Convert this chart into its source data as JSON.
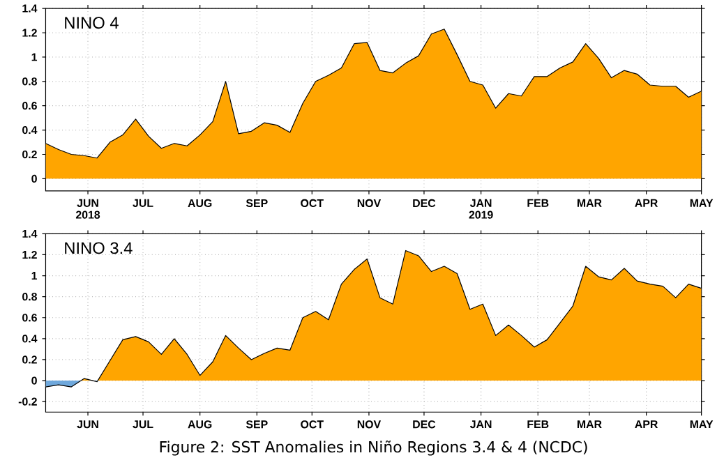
{
  "chart_data": [
    {
      "type": "area",
      "title": "NINO  4",
      "x": [
        "2018-05-09",
        "2018-05-16",
        "2018-05-23",
        "2018-05-30",
        "2018-06-06",
        "2018-06-13",
        "2018-06-20",
        "2018-06-27",
        "2018-07-04",
        "2018-07-11",
        "2018-07-18",
        "2018-07-25",
        "2018-08-01",
        "2018-08-08",
        "2018-08-15",
        "2018-08-22",
        "2018-08-29",
        "2018-09-05",
        "2018-09-12",
        "2018-09-19",
        "2018-09-26",
        "2018-10-03",
        "2018-10-10",
        "2018-10-17",
        "2018-10-24",
        "2018-10-31",
        "2018-11-07",
        "2018-11-14",
        "2018-11-21",
        "2018-11-28",
        "2018-12-05",
        "2018-12-12",
        "2018-12-19",
        "2018-12-26",
        "2019-01-02",
        "2019-01-09",
        "2019-01-16",
        "2019-01-23",
        "2019-01-30",
        "2019-02-06",
        "2019-02-13",
        "2019-02-20",
        "2019-02-27",
        "2019-03-06",
        "2019-03-13",
        "2019-03-20",
        "2019-03-27",
        "2019-04-03",
        "2019-04-10",
        "2019-04-17",
        "2019-04-24",
        "2019-05-01"
      ],
      "series": [
        {
          "color": "#ffa500",
          "values": [
            0.29,
            0.24,
            0.2,
            0.19,
            0.17,
            0.3,
            0.36,
            0.49,
            0.35,
            0.25,
            0.29,
            0.27,
            0.36,
            0.47,
            0.8,
            0.37,
            0.39,
            0.46,
            0.44,
            0.38,
            0.62,
            0.8,
            0.85,
            0.91,
            1.11,
            1.12,
            0.89,
            0.87,
            0.95,
            1.01,
            1.19,
            1.23,
            1.02,
            0.8,
            0.77,
            0.58,
            0.7,
            0.68,
            0.84,
            0.84,
            0.91,
            0.96,
            1.11,
            0.99,
            0.83,
            0.89,
            0.86,
            0.77,
            0.76,
            0.76,
            0.67,
            0.72
          ]
        }
      ],
      "xlim": [
        "2018-05-09",
        "2019-05-01"
      ],
      "xticks": [
        {
          "value": "2018-06-01",
          "label": "JUN 2018"
        },
        {
          "value": "2018-07-01",
          "label": "JUL"
        },
        {
          "value": "2018-08-01",
          "label": "AUG"
        },
        {
          "value": "2018-09-01",
          "label": "SEP"
        },
        {
          "value": "2018-10-01",
          "label": "OCT"
        },
        {
          "value": "2018-11-01",
          "label": "NOV"
        },
        {
          "value": "2018-12-01",
          "label": "DEC"
        },
        {
          "value": "2019-01-01",
          "label": "JAN 2019"
        },
        {
          "value": "2019-02-01",
          "label": "FEB"
        },
        {
          "value": "2019-03-01",
          "label": "MAR"
        },
        {
          "value": "2019-04-01",
          "label": "APR"
        },
        {
          "value": "2019-05-01",
          "label": "MAY"
        }
      ],
      "ylim": [
        -0.1,
        1.4
      ],
      "yticks": [
        0,
        0.2,
        0.4,
        0.6,
        0.8,
        1,
        1.2,
        1.4
      ],
      "grid": true
    },
    {
      "type": "area",
      "title": "NINO  3.4",
      "x": [
        "2018-05-09",
        "2018-05-16",
        "2018-05-23",
        "2018-05-30",
        "2018-06-06",
        "2018-06-13",
        "2018-06-20",
        "2018-06-27",
        "2018-07-04",
        "2018-07-11",
        "2018-07-18",
        "2018-07-25",
        "2018-08-01",
        "2018-08-08",
        "2018-08-15",
        "2018-08-22",
        "2018-08-29",
        "2018-09-05",
        "2018-09-12",
        "2018-09-19",
        "2018-09-26",
        "2018-10-03",
        "2018-10-10",
        "2018-10-17",
        "2018-10-24",
        "2018-10-31",
        "2018-11-07",
        "2018-11-14",
        "2018-11-21",
        "2018-11-28",
        "2018-12-05",
        "2018-12-12",
        "2018-12-19",
        "2018-12-26",
        "2019-01-02",
        "2019-01-09",
        "2019-01-16",
        "2019-01-23",
        "2019-01-30",
        "2019-02-06",
        "2019-02-13",
        "2019-02-20",
        "2019-02-27",
        "2019-03-06",
        "2019-03-13",
        "2019-03-20",
        "2019-03-27",
        "2019-04-03",
        "2019-04-10",
        "2019-04-17",
        "2019-04-24",
        "2019-05-01"
      ],
      "series": [
        {
          "colors": [
            "#6fa8dc",
            "#6fa8dc",
            "#6fa8dc",
            "#ffa500",
            "#6fa8dc",
            "#ffa500",
            "#ffa500",
            "#ffa500",
            "#ffa500",
            "#ffa500",
            "#ffa500",
            "#ffa500",
            "#ffa500",
            "#ffa500",
            "#ffa500",
            "#ffa500",
            "#ffa500",
            "#ffa500",
            "#ffa500",
            "#ffa500",
            "#ffa500",
            "#ffa500",
            "#ffa500",
            "#ffa500",
            "#ffa500",
            "#ffa500",
            "#ffa500",
            "#ffa500",
            "#ffa500",
            "#ffa500",
            "#ffa500",
            "#ffa500",
            "#ffa500",
            "#ffa500",
            "#ffa500",
            "#ffa500",
            "#ffa500",
            "#ffa500",
            "#ffa500",
            "#ffa500",
            "#ffa500",
            "#ffa500",
            "#ffa500",
            "#ffa500",
            "#ffa500",
            "#ffa500",
            "#ffa500",
            "#ffa500",
            "#ffa500",
            "#ffa500",
            "#ffa500",
            "#ffa500"
          ],
          "values": [
            -0.06,
            -0.04,
            -0.06,
            0.02,
            -0.01,
            0.19,
            0.39,
            0.42,
            0.37,
            0.25,
            0.4,
            0.25,
            0.05,
            0.18,
            0.43,
            0.31,
            0.2,
            0.26,
            0.31,
            0.29,
            0.6,
            0.66,
            0.58,
            0.92,
            1.06,
            1.16,
            0.79,
            0.73,
            1.24,
            1.19,
            1.04,
            1.09,
            1.02,
            0.68,
            0.73,
            0.43,
            0.53,
            0.43,
            0.32,
            0.39,
            0.55,
            0.71,
            1.09,
            0.99,
            0.96,
            1.07,
            0.95,
            0.92,
            0.9,
            0.79,
            0.92,
            0.88
          ]
        }
      ],
      "xlim": [
        "2018-05-09",
        "2019-05-01"
      ],
      "xticks": [
        {
          "value": "2018-06-01",
          "label": "JUN"
        },
        {
          "value": "2018-07-01",
          "label": "JUL"
        },
        {
          "value": "2018-08-01",
          "label": "AUG"
        },
        {
          "value": "2018-09-01",
          "label": "SEP"
        },
        {
          "value": "2018-10-01",
          "label": "OCT"
        },
        {
          "value": "2018-11-01",
          "label": "NOV"
        },
        {
          "value": "2018-12-01",
          "label": "DEC"
        },
        {
          "value": "2019-01-01",
          "label": "JAN"
        },
        {
          "value": "2019-02-01",
          "label": "FEB"
        },
        {
          "value": "2019-03-01",
          "label": "MAR"
        },
        {
          "value": "2019-04-01",
          "label": "APR"
        },
        {
          "value": "2019-05-01",
          "label": "MAY"
        }
      ],
      "ylim": [
        -0.3,
        1.4
      ],
      "yticks": [
        -0.2,
        0,
        0.2,
        0.4,
        0.6,
        0.8,
        1,
        1.2,
        1.4
      ],
      "grid": true,
      "annotations": [
        "Figure 2: SST Anomalies in Niño Regions 3.4 & 4 (NCDC)"
      ]
    }
  ]
}
